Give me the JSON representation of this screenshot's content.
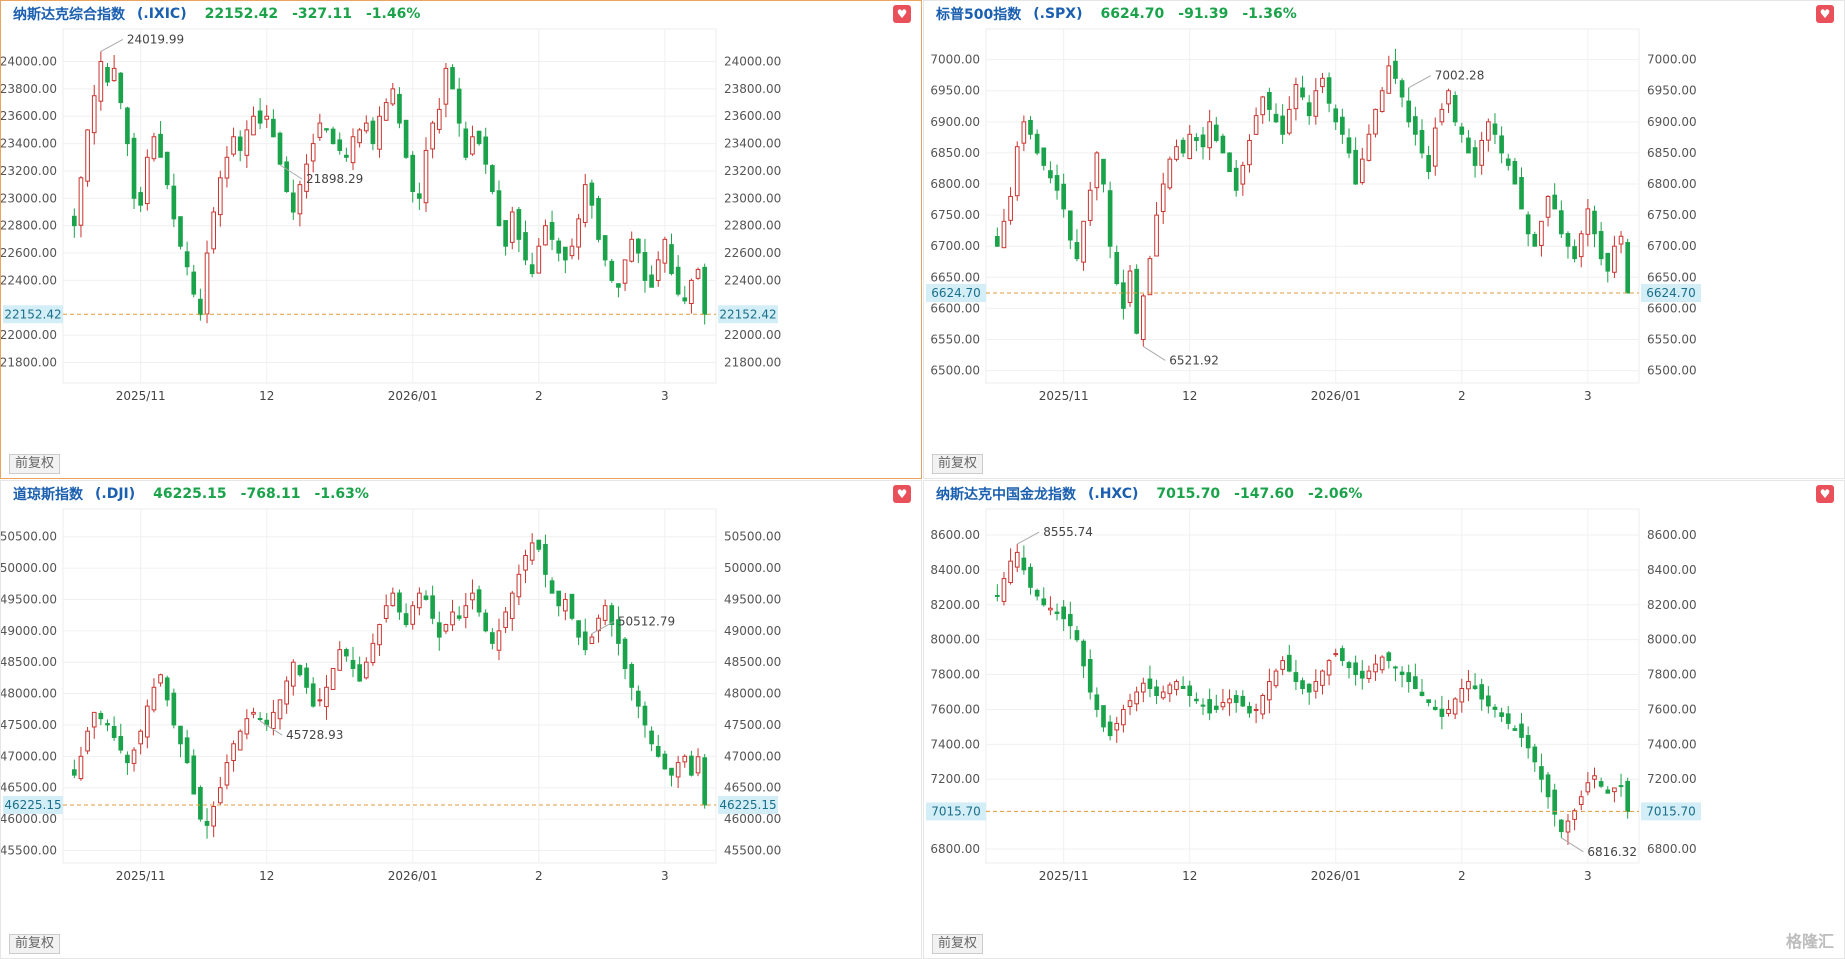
{
  "colors": {
    "up": "#c9342f",
    "down": "#1aa34a",
    "header_text": "#1b5fb0",
    "crosshair": "#e39a3a",
    "price_tag_bg": "#d4eef7"
  },
  "badge_label": "前复权",
  "watermark": "格隆汇",
  "chart_data": [
    {
      "type": "candlestick",
      "title": "纳斯达克综合指数",
      "symbol": "(.IXIC)",
      "price": "22152.42",
      "change": "-327.11",
      "change_pct": "-1.46%",
      "ylim": [
        21650,
        24150
      ],
      "yticks": [
        24000,
        23800,
        23600,
        23400,
        23200,
        23000,
        22800,
        22600,
        22400,
        22000,
        21800
      ],
      "ytick_labels": [
        "24000.00",
        "23800.00",
        "23600.00",
        "23400.00",
        "23200.00",
        "23000.00",
        "22800.00",
        "22600.00",
        "22400.00",
        "22000.00",
        "21800.00"
      ],
      "last_label": "22152.42",
      "xticks": [
        {
          "label": "2025/11",
          "idx": 10
        },
        {
          "label": "12",
          "idx": 29
        },
        {
          "label": "2026/01",
          "idx": 51
        },
        {
          "label": "2",
          "idx": 70
        },
        {
          "label": "3",
          "idx": 89
        }
      ],
      "annot_high": "24019.99",
      "annot_high_idx": 4,
      "annot_low": "21898.29",
      "annot_low_idx": 31,
      "closes": [
        22800,
        23150,
        23500,
        23750,
        24000,
        23850,
        23950,
        23700,
        23400,
        23000,
        22950,
        23300,
        23450,
        23300,
        23100,
        22850,
        22650,
        22500,
        22300,
        22150,
        22600,
        22900,
        23150,
        23300,
        23450,
        23350,
        23500,
        23600,
        23550,
        23600,
        23450,
        23250,
        23050,
        22900,
        23100,
        23250,
        23400,
        23550,
        23500,
        23400,
        23350,
        23300,
        23450,
        23500,
        23550,
        23400,
        23600,
        23700,
        23800,
        23550,
        23300,
        23050,
        23000,
        23350,
        23550,
        23650,
        23950,
        23800,
        23550,
        23300,
        23450,
        23400,
        23250,
        23050,
        22800,
        22650,
        22900,
        22700,
        22550,
        22450,
        22650,
        22800,
        22700,
        22600,
        22550,
        22650,
        22850,
        23100,
        22950,
        22700,
        22550,
        22400,
        22350,
        22550,
        22700,
        22600,
        22400,
        22350,
        22550,
        22700,
        22450,
        22300,
        22250,
        22400,
        22480,
        22152.42
      ]
    },
    {
      "type": "candlestick",
      "title": "标普500指数",
      "symbol": "(.SPX)",
      "price": "6624.70",
      "change": "-91.39",
      "change_pct": "-1.36%",
      "ylim": [
        6480,
        7030
      ],
      "yticks": [
        7000,
        6950,
        6900,
        6850,
        6800,
        6750,
        6700,
        6650,
        6600,
        6550,
        6500
      ],
      "ytick_labels": [
        "7000.00",
        "6950.00",
        "6900.00",
        "6850.00",
        "6800.00",
        "6750.00",
        "6700.00",
        "6650.00",
        "6600.00",
        "6550.00",
        "6500.00"
      ],
      "last_label": "6624.70",
      "xticks": [
        {
          "label": "2025/11",
          "idx": 10
        },
        {
          "label": "12",
          "idx": 29
        },
        {
          "label": "2026/01",
          "idx": 51
        },
        {
          "label": "2",
          "idx": 70
        },
        {
          "label": "3",
          "idx": 89
        }
      ],
      "annot_high": "7002.28",
      "annot_high_idx": 62,
      "annot_low": "6521.92",
      "annot_low_idx": 22,
      "closes": [
        6700,
        6740,
        6780,
        6860,
        6900,
        6880,
        6850,
        6830,
        6810,
        6790,
        6760,
        6710,
        6680,
        6740,
        6790,
        6850,
        6800,
        6700,
        6640,
        6600,
        6660,
        6560,
        6620,
        6680,
        6750,
        6800,
        6840,
        6860,
        6850,
        6880,
        6870,
        6860,
        6900,
        6870,
        6850,
        6820,
        6790,
        6830,
        6870,
        6910,
        6940,
        6920,
        6900,
        6880,
        6920,
        6960,
        6940,
        6910,
        6950,
        6970,
        6930,
        6900,
        6880,
        6850,
        6800,
        6840,
        6880,
        6920,
        6950,
        6990,
        6970,
        6940,
        6900,
        6880,
        6850,
        6820,
        6890,
        6920,
        6950,
        6900,
        6880,
        6850,
        6830,
        6870,
        6900,
        6880,
        6850,
        6830,
        6800,
        6760,
        6720,
        6700,
        6740,
        6780,
        6760,
        6720,
        6700,
        6680,
        6720,
        6760,
        6720,
        6680,
        6660,
        6700,
        6716,
        6624.7
      ]
    },
    {
      "type": "candlestick",
      "title": "道琼斯指数",
      "symbol": "(.DJI)",
      "price": "46225.15",
      "change": "-768.11",
      "change_pct": "-1.63%",
      "ylim": [
        45300,
        50750
      ],
      "yticks": [
        50500,
        50000,
        49500,
        49000,
        48500,
        48000,
        47500,
        47000,
        46500,
        46000,
        45500
      ],
      "ytick_labels": [
        "50500.00",
        "50000.00",
        "49500.00",
        "49000.00",
        "48500.00",
        "48000.00",
        "47500.00",
        "47000.00",
        "46500.00",
        "46000.00",
        "45500.00"
      ],
      "last_label": "46225.15",
      "xticks": [
        {
          "label": "2025/11",
          "idx": 10
        },
        {
          "label": "12",
          "idx": 29
        },
        {
          "label": "2026/01",
          "idx": 51
        },
        {
          "label": "2",
          "idx": 70
        },
        {
          "label": "3",
          "idx": 89
        }
      ],
      "annot_high": "50512.79",
      "annot_high_idx": 78,
      "annot_low": "45728.93",
      "annot_low_idx": 28,
      "closes": [
        46700,
        47000,
        47400,
        47700,
        47600,
        47500,
        47300,
        47100,
        46900,
        47100,
        47400,
        47800,
        48100,
        48300,
        47900,
        47500,
        47200,
        46900,
        46400,
        46000,
        45900,
        46200,
        46500,
        46900,
        47200,
        47400,
        47600,
        47700,
        47600,
        47500,
        47700,
        47900,
        48200,
        48500,
        48300,
        48100,
        47800,
        47900,
        48100,
        48400,
        48700,
        48600,
        48400,
        48200,
        48500,
        48800,
        49100,
        49400,
        49600,
        49300,
        49100,
        49400,
        49600,
        49500,
        49200,
        48900,
        49100,
        49300,
        49200,
        49400,
        49600,
        49300,
        49000,
        48800,
        49000,
        49300,
        49600,
        49900,
        50200,
        50400,
        50300,
        49900,
        49600,
        49400,
        49500,
        49200,
        48900,
        48700,
        48900,
        49200,
        49400,
        49100,
        48800,
        48400,
        48100,
        47800,
        47500,
        47200,
        47000,
        46800,
        46700,
        46900,
        47000,
        46700,
        46993,
        46225.15
      ]
    },
    {
      "type": "candlestick",
      "title": "纳斯达克中国金龙指数",
      "symbol": "(.HXC)",
      "price": "7015.70",
      "change": "-147.60",
      "change_pct": "-2.06%",
      "ylim": [
        6720,
        8680
      ],
      "yticks": [
        8600,
        8400,
        8200,
        8000,
        7800,
        7600,
        7400,
        7200,
        6800
      ],
      "ytick_labels": [
        "8600.00",
        "8400.00",
        "8200.00",
        "8000.00",
        "7800.00",
        "7600.00",
        "7400.00",
        "7200.00",
        "6800.00"
      ],
      "last_label": "7015.70",
      "xticks": [
        {
          "label": "2025/11",
          "idx": 10
        },
        {
          "label": "12",
          "idx": 29
        },
        {
          "label": "2026/01",
          "idx": 51
        },
        {
          "label": "2",
          "idx": 70
        },
        {
          "label": "3",
          "idx": 89
        }
      ],
      "annot_high": "8555.74",
      "annot_high_idx": 3,
      "annot_low": "6816.32",
      "annot_low_idx": 85,
      "closes": [
        8250,
        8350,
        8450,
        8500,
        8400,
        8300,
        8250,
        8200,
        8180,
        8150,
        8120,
        8080,
        8000,
        7850,
        7700,
        7600,
        7500,
        7450,
        7520,
        7600,
        7650,
        7700,
        7750,
        7720,
        7680,
        7700,
        7740,
        7760,
        7720,
        7680,
        7650,
        7620,
        7580,
        7600,
        7640,
        7660,
        7640,
        7620,
        7580,
        7600,
        7680,
        7760,
        7820,
        7880,
        7820,
        7760,
        7720,
        7700,
        7760,
        7820,
        7880,
        7920,
        7880,
        7840,
        7800,
        7780,
        7820,
        7860,
        7900,
        7880,
        7840,
        7800,
        7760,
        7720,
        7680,
        7640,
        7600,
        7560,
        7600,
        7660,
        7720,
        7760,
        7720,
        7660,
        7620,
        7600,
        7560,
        7520,
        7480,
        7440,
        7380,
        7300,
        7200,
        7100,
        7000,
        6900,
        6960,
        7020,
        7100,
        7180,
        7220,
        7160,
        7120,
        7150,
        7163,
        7015.7
      ]
    }
  ]
}
